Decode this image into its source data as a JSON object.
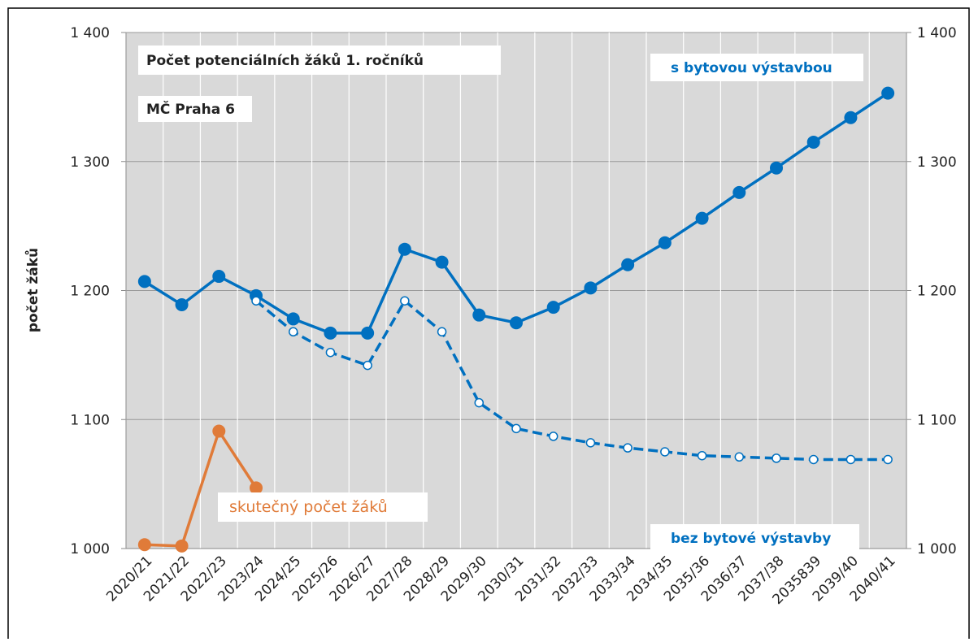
{
  "chart_data": {
    "type": "line",
    "title": "Počet potenciálních žáků 1. ročníků",
    "subtitle": "MČ Praha 6",
    "y_label": "počet žáků",
    "categories": [
      "2020/21",
      "2021/22",
      "2022/23",
      "2023/24",
      "2024/25",
      "2025/26",
      "2026/27",
      "2027/28",
      "2028/29",
      "2029/30",
      "2030/31",
      "2031/32",
      "2032/33",
      "2033/34",
      "2034/35",
      "2035/36",
      "2036/37",
      "2037/38",
      "2035839",
      "2039/40",
      "2040/41"
    ],
    "series": [
      {
        "name": "s bytovou výstavbou",
        "color": "#0070c0",
        "dashed": false,
        "values": [
          1207,
          1189,
          1211,
          1196,
          1178,
          1167,
          1167,
          1232,
          1222,
          1181,
          1175,
          1187,
          1202,
          1220,
          1237,
          1256,
          1276,
          1295,
          1315,
          1334,
          1353
        ]
      },
      {
        "name": "bez bytové výstavby",
        "color": "#0070c0",
        "dashed": true,
        "values": [
          null,
          null,
          null,
          1192,
          1168,
          1152,
          1142,
          1192,
          1168,
          1113,
          1093,
          1087,
          1082,
          1078,
          1075,
          1072,
          1071,
          1070,
          1069,
          1069,
          1069
        ]
      },
      {
        "name": "skutečný počet žáků",
        "color": "#e07b39",
        "dashed": false,
        "values": [
          1003,
          1002,
          1091,
          1047,
          null,
          null,
          null,
          null,
          null,
          null,
          null,
          null,
          null,
          null,
          null,
          null,
          null,
          null,
          null,
          null,
          null
        ]
      }
    ],
    "ylim": [
      1000,
      1400
    ],
    "yticks": [
      {
        "value": 1000,
        "label": "1 000"
      },
      {
        "value": 1100,
        "label": "1 100"
      },
      {
        "value": 1200,
        "label": "1 200"
      },
      {
        "value": 1300,
        "label": "1 300"
      },
      {
        "value": 1400,
        "label": "1 400"
      }
    ],
    "y2lim": [
      1000,
      1400
    ],
    "y2ticks": [
      {
        "value": 1000,
        "label": "1 000"
      },
      {
        "value": 1100,
        "label": "1 100"
      },
      {
        "value": 1200,
        "label": "1 200"
      },
      {
        "value": 1300,
        "label": "1 300"
      },
      {
        "value": 1400,
        "label": "1 400"
      }
    ],
    "grid": true
  }
}
